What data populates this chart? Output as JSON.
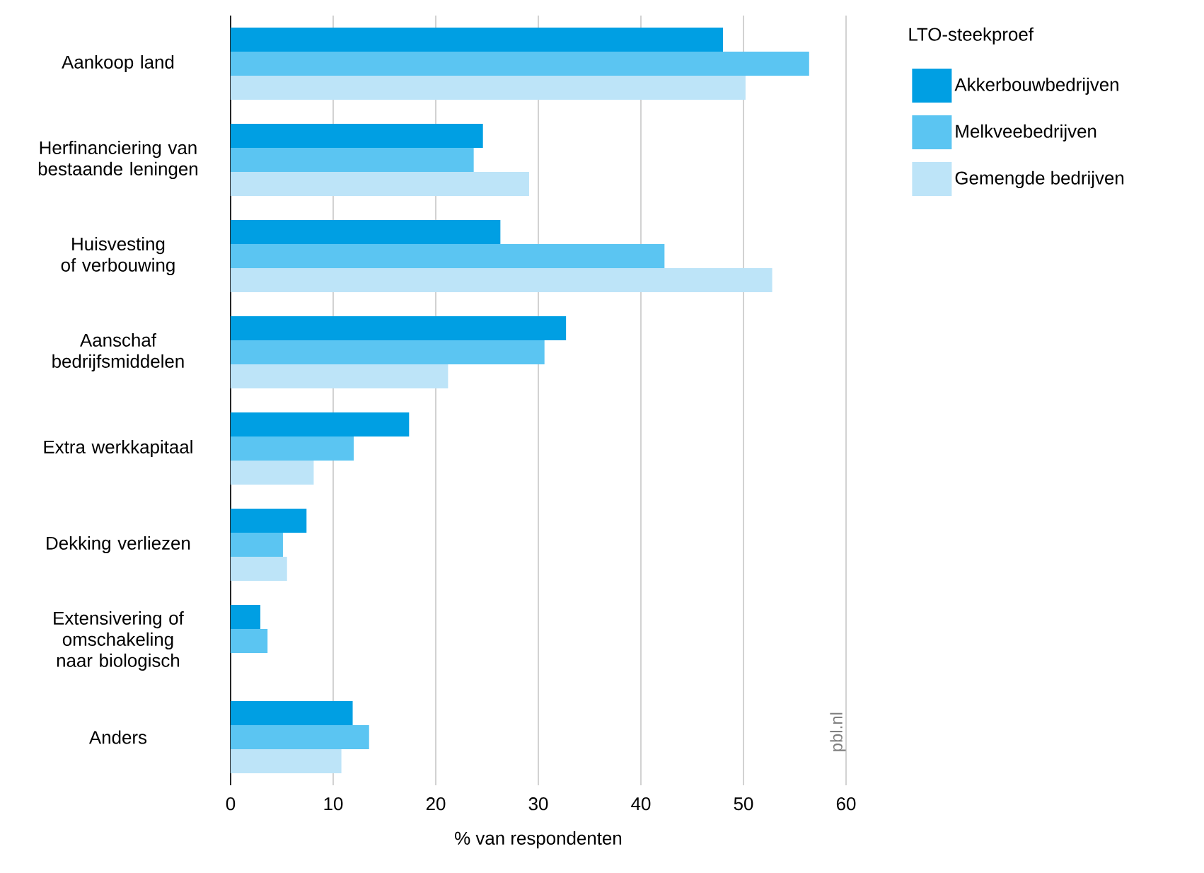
{
  "chart_data": {
    "type": "bar",
    "orientation": "horizontal",
    "categories": [
      "Aankoop land",
      "Herfinanciering van bestaande leningen",
      "Huisvesting of verbouwing",
      "Aanschaf bedrijfsmiddelen",
      "Extra werkkapitaal",
      "Dekking verliezen",
      "Extensivering of omschakeling naar biologisch",
      "Anders"
    ],
    "series": [
      {
        "name": "Akkerbouwbedrijven",
        "color": "#009fe3",
        "values": [
          48.0,
          24.6,
          26.3,
          32.7,
          17.4,
          7.4,
          2.9,
          11.9
        ]
      },
      {
        "name": "Melkveebedrijven",
        "color": "#5bc5f2",
        "values": [
          56.4,
          23.7,
          42.3,
          30.6,
          12.0,
          5.1,
          3.6,
          13.5
        ]
      },
      {
        "name": "Gemengde bedrijven",
        "color": "#bde4f8",
        "values": [
          50.2,
          29.1,
          52.8,
          21.2,
          8.1,
          5.5,
          null,
          10.8
        ]
      }
    ],
    "legend_title": "LTO-steekproef",
    "legend": "top right",
    "xlabel": "% van respondenten",
    "xlim": [
      0,
      60
    ],
    "xticks": [
      0,
      10,
      20,
      30,
      40,
      50,
      60
    ],
    "grid": "x",
    "annotations": [
      "pbl.nl"
    ]
  }
}
